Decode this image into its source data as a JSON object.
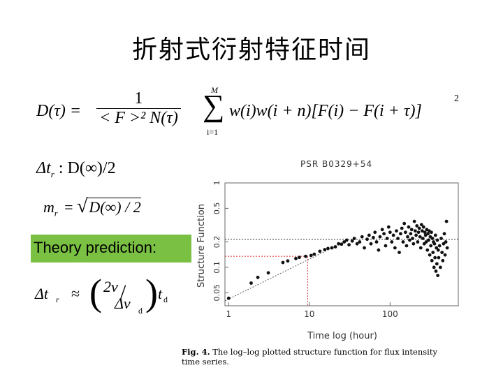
{
  "slide": {
    "title": "折射式衍射特征时间",
    "eq1": {
      "lhs": "D(τ) =",
      "num": "1",
      "den": "< F >² N(τ)",
      "sum_top": "M",
      "sum_bottom": "i=1",
      "body": "w(i)w(i + n)[F(i) − F(i + τ)]",
      "exp": "2"
    },
    "eq2": {
      "lhs": "Δt",
      "sub": "r",
      "rhs": " :  D(∞)/2"
    },
    "eq3": {
      "lhs": "m",
      "sub": "r",
      "eqsign": "=",
      "rad": "D(∞) / 2"
    },
    "theory_label": "Theory prediction:",
    "eq4": {
      "lhs": "Δt",
      "sub": "r",
      "approx": "≈",
      "num": "2ν",
      "den": "Δν",
      "den_sub": "d",
      "tail": "t",
      "tail_sub": "d"
    },
    "plot": {
      "title": "PSR B0329+54",
      "xlabel": "Time log (hour)",
      "ylabel": "Structure Function",
      "xticks": [
        "1",
        "10",
        "100"
      ],
      "yticks": [
        "0.05",
        "0.1",
        "0.2",
        "0.5",
        "1"
      ]
    },
    "caption_bold": "Fig. 4.",
    "caption_bold_rest": "The log–log plotted structure function for flux intensity",
    "caption_line2": "time series."
  },
  "chart_data": {
    "type": "scatter",
    "title": "PSR B0329+54",
    "xlabel": "Time log (hour)",
    "ylabel": "Structure Function",
    "xscale": "log",
    "yscale": "log",
    "xlim": [
      0.9,
      700
    ],
    "ylim": [
      0.035,
      1.0
    ],
    "xticks": [
      1,
      10,
      100
    ],
    "yticks": [
      0.05,
      0.1,
      0.2,
      0.5,
      1
    ],
    "points": [
      [
        1.0,
        0.043
      ],
      [
        1.9,
        0.065
      ],
      [
        2.3,
        0.076
      ],
      [
        3.1,
        0.086
      ],
      [
        4.7,
        0.114
      ],
      [
        5.4,
        0.119
      ],
      [
        6.8,
        0.127
      ],
      [
        7.5,
        0.131
      ],
      [
        9.0,
        0.135
      ],
      [
        10.5,
        0.138
      ],
      [
        11.5,
        0.143
      ],
      [
        13.5,
        0.155
      ],
      [
        15.5,
        0.162
      ],
      [
        17,
        0.167
      ],
      [
        19,
        0.17
      ],
      [
        21,
        0.175
      ],
      [
        23,
        0.19
      ],
      [
        25,
        0.188
      ],
      [
        27,
        0.2
      ],
      [
        29,
        0.21
      ],
      [
        31,
        0.185
      ],
      [
        34,
        0.205
      ],
      [
        36,
        0.22
      ],
      [
        39,
        0.19
      ],
      [
        42,
        0.2
      ],
      [
        45,
        0.23
      ],
      [
        48,
        0.17
      ],
      [
        52,
        0.215
      ],
      [
        55,
        0.24
      ],
      [
        58,
        0.19
      ],
      [
        62,
        0.225
      ],
      [
        65,
        0.26
      ],
      [
        68,
        0.2
      ],
      [
        72,
        0.16
      ],
      [
        75,
        0.23
      ],
      [
        80,
        0.28
      ],
      [
        84,
        0.25
      ],
      [
        88,
        0.18
      ],
      [
        92,
        0.22
      ],
      [
        96,
        0.3
      ],
      [
        100,
        0.26
      ],
      [
        105,
        0.2
      ],
      [
        110,
        0.24
      ],
      [
        115,
        0.17
      ],
      [
        120,
        0.27
      ],
      [
        125,
        0.22
      ],
      [
        130,
        0.15
      ],
      [
        135,
        0.25
      ],
      [
        140,
        0.29
      ],
      [
        145,
        0.2
      ],
      [
        150,
        0.33
      ],
      [
        155,
        0.26
      ],
      [
        160,
        0.18
      ],
      [
        165,
        0.23
      ],
      [
        170,
        0.3
      ],
      [
        175,
        0.21
      ],
      [
        180,
        0.25
      ],
      [
        185,
        0.28
      ],
      [
        190,
        0.22
      ],
      [
        195,
        0.19
      ],
      [
        200,
        0.35
      ],
      [
        205,
        0.27
      ],
      [
        210,
        0.24
      ],
      [
        215,
        0.31
      ],
      [
        220,
        0.2
      ],
      [
        225,
        0.26
      ],
      [
        230,
        0.29
      ],
      [
        235,
        0.23
      ],
      [
        240,
        0.17
      ],
      [
        245,
        0.32
      ],
      [
        250,
        0.27
      ],
      [
        255,
        0.22
      ],
      [
        260,
        0.3
      ],
      [
        265,
        0.19
      ],
      [
        270,
        0.26
      ],
      [
        275,
        0.24
      ],
      [
        280,
        0.2
      ],
      [
        285,
        0.28
      ],
      [
        290,
        0.16
      ],
      [
        295,
        0.25
      ],
      [
        300,
        0.21
      ],
      [
        305,
        0.27
      ],
      [
        310,
        0.14
      ],
      [
        315,
        0.23
      ],
      [
        320,
        0.18
      ],
      [
        325,
        0.26
      ],
      [
        330,
        0.12
      ],
      [
        335,
        0.22
      ],
      [
        340,
        0.15
      ],
      [
        345,
        0.2
      ],
      [
        350,
        0.1
      ],
      [
        355,
        0.19
      ],
      [
        360,
        0.13
      ],
      [
        365,
        0.24
      ],
      [
        370,
        0.09
      ],
      [
        375,
        0.17
      ],
      [
        380,
        0.11
      ],
      [
        385,
        0.21
      ],
      [
        390,
        0.08
      ],
      [
        395,
        0.16
      ],
      [
        400,
        0.13
      ],
      [
        410,
        0.18
      ],
      [
        420,
        0.1
      ],
      [
        430,
        0.22
      ],
      [
        440,
        0.15
      ],
      [
        450,
        0.12
      ],
      [
        460,
        0.19
      ],
      [
        470,
        0.25
      ],
      [
        480,
        0.14
      ],
      [
        490,
        0.2
      ],
      [
        500,
        0.35
      ],
      [
        510,
        0.17
      ]
    ],
    "fit_line": {
      "from": [
        0.9,
        0.04
      ],
      "to": [
        30,
        0.21
      ]
    },
    "hline_upper": 0.215,
    "hline_lower": 0.135,
    "vline_x": 9.5
  }
}
